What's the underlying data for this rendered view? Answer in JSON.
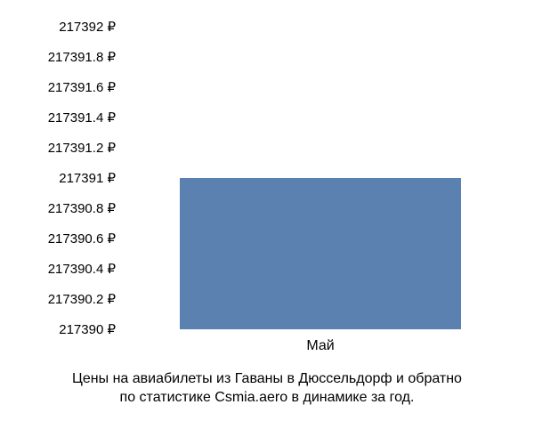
{
  "chart": {
    "type": "bar",
    "background_color": "#ffffff",
    "text_color": "#000000",
    "y_axis": {
      "min": 217390,
      "max": 217392,
      "ticks": [
        "217390 ₽",
        "217390.2 ₽",
        "217390.4 ₽",
        "217390.6 ₽",
        "217390.8 ₽",
        "217391 ₽",
        "217391.2 ₽",
        "217391.4 ₽",
        "217391.6 ₽",
        "217391.8 ₽",
        "217392 ₽"
      ],
      "label_fontsize": 15
    },
    "series": [
      {
        "category": "Май",
        "value": 217391,
        "color": "#5a81af",
        "bar_width_frac": 0.72,
        "center_frac": 0.5
      }
    ],
    "x_label_fontsize": 16
  },
  "caption": {
    "line1": "Цены на авиабилеты из Гаваны в Дюссельдорф и обратно",
    "line2": "по статистике Csmia.aero в динамике за год.",
    "fontsize": 16,
    "color": "#000000"
  }
}
